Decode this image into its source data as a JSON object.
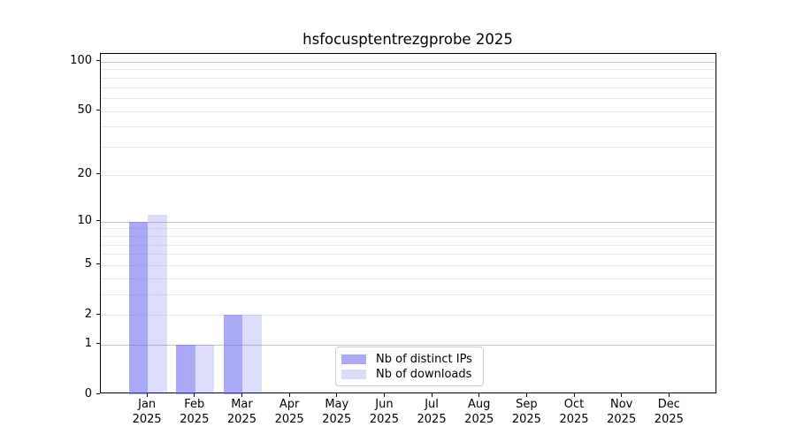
{
  "chart_data": {
    "type": "bar",
    "title": "hsfocusptentrezgprobe 2025",
    "categories": [
      "Jan 2025",
      "Feb 2025",
      "Mar 2025",
      "Apr 2025",
      "May 2025",
      "Jun 2025",
      "Jul 2025",
      "Aug 2025",
      "Sep 2025",
      "Oct 2025",
      "Nov 2025",
      "Dec 2025"
    ],
    "series": [
      {
        "name": "Nb of distinct IPs",
        "color": "rgba(102,102,238,0.56)",
        "color_hex": "#aaaaf2",
        "values": [
          10,
          1,
          2,
          0,
          0,
          0,
          0,
          0,
          0,
          0,
          0,
          0
        ]
      },
      {
        "name": "Nb of downloads",
        "color": "rgba(102,102,238,0.23)",
        "color_hex": "#dcdcf8",
        "values": [
          11,
          1,
          2,
          0,
          0,
          0,
          0,
          0,
          0,
          0,
          0,
          0
        ]
      }
    ],
    "xlabel": "",
    "ylabel": "",
    "yscale": "log2(1+v)",
    "y_ticks": [
      0,
      1,
      2,
      5,
      10,
      20,
      50,
      100
    ],
    "y_major_gridlines": [
      1,
      10,
      100
    ],
    "y_minor_gridlines": [
      2,
      3,
      4,
      5,
      6,
      7,
      8,
      9,
      20,
      30,
      40,
      50,
      60,
      70,
      80,
      90
    ],
    "ylim": [
      0,
      112
    ],
    "grid": "horizontal",
    "legend_position": "bottom-center"
  },
  "colors": {
    "background": "#ffffff",
    "spine": "#000000",
    "major_grid": "#c3c3c3",
    "minor_grid": "#eaeaea",
    "legend_border": "#cccccc",
    "text": "#000000"
  }
}
